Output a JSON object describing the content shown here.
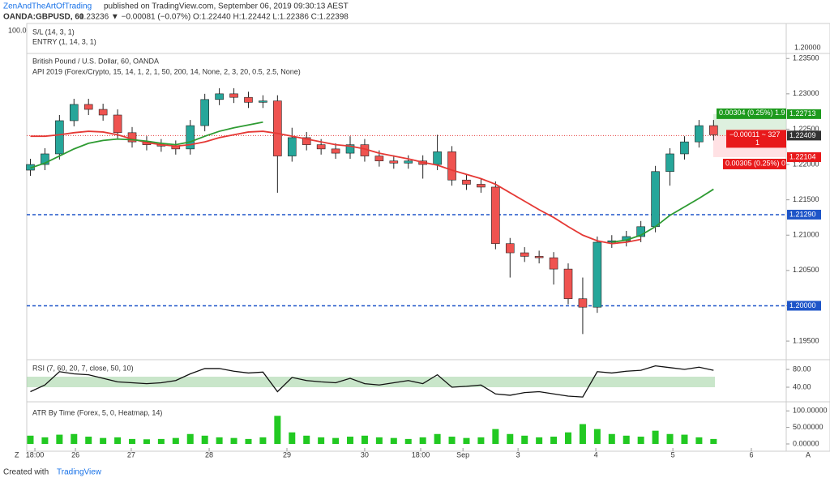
{
  "header": {
    "author": "ZenAndTheArtOfTrading",
    "published": "published on TradingView.com, September 06, 2019 09:30:13 AEST",
    "symbol": "OANDA:GBPUSD, 60",
    "quote": "1.23236 ▼ −0.00081 (−0.07%) O:1.22440 H:1.22442 L:1.22386 C:1.22398"
  },
  "top_pane": {
    "scale_label": "100.0",
    "lines": [
      "S/L (14, 3, 1)",
      "ENTRY (1, 14, 3, 1)"
    ],
    "price_label": "1.20000"
  },
  "chart_data": [
    {
      "type": "candlestick",
      "title": "British Pound / U.S. Dollar, 60, OANDA",
      "subtitle": "API 2019 (Forex/Crypto, 15, 14, 1, 2, 1, 50, 200, 14, None, 2, 3, 20, 0.5, 2.5, None)",
      "x": [
        0,
        1,
        2,
        3,
        4,
        5,
        6,
        7,
        8,
        9,
        10,
        11,
        12,
        13,
        14,
        15,
        16,
        17,
        18,
        19,
        20,
        21,
        22,
        23,
        24,
        25,
        26,
        27,
        28,
        29,
        30,
        31,
        32,
        33,
        34,
        35,
        36,
        37,
        38,
        39,
        40,
        41,
        42,
        43,
        44,
        45,
        46,
        47
      ],
      "xlim": [
        -0.25,
        52
      ],
      "xticks": [
        {
          "value": 0.31,
          "label": "18:00"
        },
        {
          "value": 3.1,
          "label": "26"
        },
        {
          "value": 6.94,
          "label": "27"
        },
        {
          "value": 12.3,
          "label": "28"
        },
        {
          "value": 17.65,
          "label": "29"
        },
        {
          "value": 23.0,
          "label": "30"
        },
        {
          "value": 26.85,
          "label": "18:00"
        },
        {
          "value": 29.76,
          "label": "Sep"
        },
        {
          "value": 33.55,
          "label": "3"
        },
        {
          "value": 38.9,
          "label": "4"
        },
        {
          "value": 44.2,
          "label": "5"
        },
        {
          "value": 49.6,
          "label": "6"
        }
      ],
      "ylim": [
        1.1926,
        1.2356
      ],
      "yticks": [
        {
          "value": 1.195,
          "label": "1.19500"
        },
        {
          "value": 1.2,
          "label": "1.20000"
        },
        {
          "value": 1.205,
          "label": "1.20500"
        },
        {
          "value": 1.21,
          "label": "1.21000"
        },
        {
          "value": 1.215,
          "label": "1.21500"
        },
        {
          "value": 1.22,
          "label": "1.22000"
        },
        {
          "value": 1.225,
          "label": "1.22500"
        },
        {
          "value": 1.23,
          "label": "1.23000"
        },
        {
          "value": 1.235,
          "label": "1.23500"
        }
      ],
      "up_color": "#26a69a",
      "down_color": "#ef5350",
      "open": [
        1.2192,
        1.22,
        1.2215,
        1.2262,
        1.2285,
        1.2278,
        1.227,
        1.2245,
        1.2232,
        1.2228,
        1.2226,
        1.2222,
        1.2255,
        1.2292,
        1.23,
        1.2295,
        1.2288,
        1.229,
        1.2212,
        1.2238,
        1.2228,
        1.2222,
        1.2216,
        1.2228,
        1.2212,
        1.2205,
        1.2202,
        1.2205,
        1.22,
        1.2218,
        1.2178,
        1.2172,
        1.2168,
        1.2088,
        1.2075,
        1.207,
        1.2068,
        1.2052,
        1.201,
        1.1998,
        1.209,
        1.2092,
        1.2098,
        1.2112,
        1.219,
        1.2215,
        1.2232,
        1.2255
      ],
      "high": [
        1.2208,
        1.2223,
        1.227,
        1.2293,
        1.2293,
        1.2286,
        1.2278,
        1.2253,
        1.224,
        1.2236,
        1.2234,
        1.2263,
        1.23,
        1.2308,
        1.2308,
        1.2303,
        1.2298,
        1.2298,
        1.2252,
        1.2246,
        1.2236,
        1.223,
        1.224,
        1.2236,
        1.222,
        1.2213,
        1.2213,
        1.2213,
        1.2242,
        1.2226,
        1.2186,
        1.218,
        1.2176,
        1.2096,
        1.2083,
        1.2078,
        1.2076,
        1.206,
        1.204,
        1.2098,
        1.21,
        1.2106,
        1.212,
        1.2198,
        1.2223,
        1.224,
        1.2263,
        1.2263
      ],
      "low": [
        1.2184,
        1.2192,
        1.2207,
        1.2254,
        1.227,
        1.2262,
        1.2237,
        1.2224,
        1.222,
        1.2218,
        1.2214,
        1.2214,
        1.2247,
        1.2284,
        1.2287,
        1.228,
        1.228,
        1.216,
        1.2204,
        1.222,
        1.2214,
        1.2208,
        1.2208,
        1.2204,
        1.2197,
        1.2194,
        1.2194,
        1.218,
        1.2192,
        1.217,
        1.2164,
        1.216,
        1.208,
        1.204,
        1.2062,
        1.206,
        1.203,
        1.2002,
        1.196,
        1.199,
        1.2082,
        1.2084,
        1.209,
        1.2104,
        1.217,
        1.2207,
        1.2224,
        1.2234
      ],
      "close": [
        1.22,
        1.2215,
        1.2262,
        1.2285,
        1.2278,
        1.227,
        1.2245,
        1.2232,
        1.2228,
        1.2226,
        1.2222,
        1.2255,
        1.2292,
        1.23,
        1.2295,
        1.2288,
        1.229,
        1.2212,
        1.2238,
        1.2228,
        1.2222,
        1.2216,
        1.2228,
        1.2212,
        1.2205,
        1.2202,
        1.2205,
        1.22,
        1.2218,
        1.2178,
        1.2172,
        1.2168,
        1.2088,
        1.2075,
        1.207,
        1.2068,
        1.2052,
        1.201,
        1.1998,
        1.209,
        1.2092,
        1.2098,
        1.2112,
        1.219,
        1.2215,
        1.2232,
        1.2255,
        1.2242
      ],
      "overlays": [
        {
          "color": "#e53935",
          "values": [
            1.224,
            1.224,
            1.2242,
            1.2245,
            1.2247,
            1.2246,
            1.2242,
            1.2236,
            1.2231,
            1.2228,
            1.2226,
            1.2228,
            1.2232,
            1.2238,
            1.2242,
            1.2246,
            1.2247,
            1.2244,
            1.224,
            1.2236,
            1.2232,
            1.2228,
            1.2226,
            1.2222,
            1.2216,
            1.2212,
            1.2208,
            1.2203,
            1.2199,
            1.2192,
            1.2186,
            1.218,
            1.2172,
            1.216,
            1.2148,
            1.2136,
            1.2125,
            1.2112,
            1.21,
            1.2092,
            1.2088,
            1.209,
            1.2094,
            null,
            null,
            null,
            null,
            null
          ]
        },
        {
          "color": "#2e9b32",
          "values": [
            1.2195,
            1.2202,
            1.2212,
            1.2222,
            1.223,
            1.2234,
            1.2236,
            1.2235,
            1.2233,
            1.223,
            1.2228,
            1.2232,
            1.224,
            1.2247,
            1.2252,
            1.2256,
            1.226,
            null,
            null,
            null,
            null,
            null,
            null,
            null,
            null,
            null,
            null,
            null,
            null,
            null,
            null,
            null,
            null,
            null,
            null,
            null,
            null,
            null,
            null,
            null,
            1.209,
            1.2093,
            1.21,
            1.2112,
            1.2128,
            1.214,
            1.2152,
            1.2165
          ]
        }
      ],
      "levels": [
        {
          "value": 1.2129,
          "label": "1.21290",
          "color": "#1e55c8"
        },
        {
          "value": 1.2,
          "label": "1.20000",
          "color": "#1e55c8"
        }
      ],
      "price_labels": [
        {
          "value": 1.22713,
          "label": "1.22713",
          "color": "#1d9a1d"
        },
        {
          "value": 1.22409,
          "label": "1.22409",
          "color": "#333333"
        },
        {
          "value": 1.22104,
          "label": "1.22104",
          "color": "#e8191b"
        }
      ],
      "position": {
        "target_text": "0.00304 (0.25%) 1.9",
        "pnl_text": "−0.00011 ~ 327",
        "pnl_text2": "1",
        "stop_text": "0.00305 (0.25%) 0"
      }
    },
    {
      "type": "line",
      "title": "RSI (7, 60, 20, 7, close, 50, 10)",
      "color": "#111111",
      "ylim": [
        9.1,
        96.4
      ],
      "yticks": [
        {
          "value": 40,
          "label": "40.00"
        },
        {
          "value": 80,
          "label": "80.00"
        }
      ],
      "values": [
        30,
        45,
        75,
        70,
        68,
        60,
        52,
        50,
        48,
        50,
        55,
        70,
        82,
        82,
        76,
        72,
        74,
        30,
        62,
        55,
        52,
        50,
        60,
        48,
        45,
        50,
        55,
        48,
        68,
        40,
        42,
        45,
        25,
        22,
        28,
        30,
        25,
        20,
        18,
        75,
        72,
        76,
        78,
        88,
        84,
        80,
        85,
        78
      ]
    },
    {
      "type": "bar",
      "title": "ATR By Time (Forex, 5, 0, Heatmap, 14)",
      "color": "#22c922",
      "ylim": [
        0,
        125
      ],
      "yticks": [
        {
          "value": 0,
          "label": "0.00000"
        },
        {
          "value": 50,
          "label": "50.00000"
        },
        {
          "value": 100,
          "label": "100.00000"
        }
      ],
      "values": [
        25,
        20,
        28,
        30,
        22,
        18,
        20,
        15,
        14,
        15,
        18,
        30,
        25,
        20,
        18,
        15,
        20,
        85,
        35,
        25,
        20,
        18,
        22,
        25,
        20,
        18,
        15,
        20,
        30,
        22,
        18,
        20,
        45,
        30,
        25,
        20,
        22,
        35,
        60,
        45,
        30,
        25,
        22,
        40,
        30,
        28,
        20,
        15
      ]
    }
  ],
  "footer": {
    "created": "Created with",
    "brand": "TradingView",
    "corner_left": "Z",
    "corner_right": "A"
  }
}
